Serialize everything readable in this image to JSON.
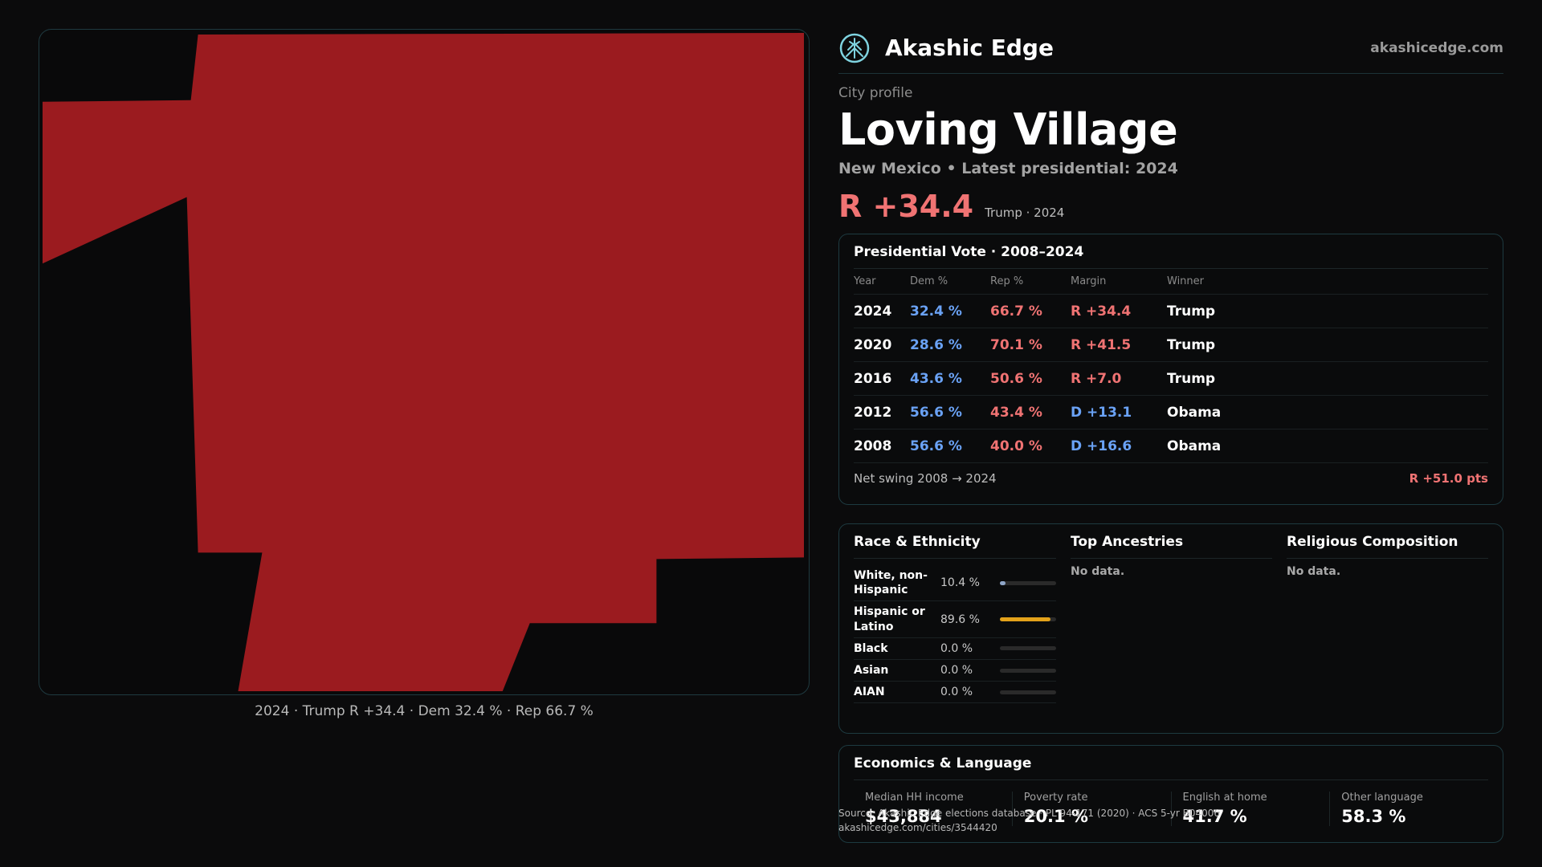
{
  "brand": {
    "name": "Akashic Edge",
    "url": "akashicedge.com",
    "logo_icon": "akashic-tree-logo"
  },
  "profile": {
    "eyebrow": "City profile",
    "city": "Loving Village",
    "subtitle": "New Mexico • Latest presidential: 2024",
    "headline_margin": "R +34.4",
    "headline_note": "Trump · 2024"
  },
  "map": {
    "caption": "2024 · Trump R +34.4 · Dem 32.4 % · Rep 66.7 %",
    "fill_color": "#9b1b1f"
  },
  "vote": {
    "title": "Presidential Vote · 2008–2024",
    "headers": {
      "year": "Year",
      "dem": "Dem %",
      "rep": "Rep %",
      "margin": "Margin",
      "winner": "Winner"
    },
    "rows": [
      {
        "year": "2024",
        "dem": "32.4 %",
        "rep": "66.7 %",
        "margin": "R +34.4",
        "winner": "Trump"
      },
      {
        "year": "2020",
        "dem": "28.6 %",
        "rep": "70.1 %",
        "margin": "R +41.5",
        "winner": "Trump"
      },
      {
        "year": "2016",
        "dem": "43.6 %",
        "rep": "50.6 %",
        "margin": "R +7.0",
        "winner": "Trump"
      },
      {
        "year": "2012",
        "dem": "56.6 %",
        "rep": "43.4 %",
        "margin": "D +13.1",
        "winner": "Obama"
      },
      {
        "year": "2008",
        "dem": "56.6 %",
        "rep": "40.0 %",
        "margin": "D +16.6",
        "winner": "Obama"
      }
    ],
    "swing_label": "Net swing 2008 → 2024",
    "swing_value": "R +51.0 pts"
  },
  "demographics": {
    "race_title": "Race & Ethnicity",
    "race": [
      {
        "label": "White, non-Hispanic",
        "pct": "10.4 %",
        "fraction": 0.104,
        "color": "#8fa6c8"
      },
      {
        "label": "Hispanic or Latino",
        "pct": "89.6 %",
        "fraction": 0.896,
        "color": "#e3a21a"
      },
      {
        "label": "Black",
        "pct": "0.0 %",
        "fraction": 0,
        "color": "#8fa6c8"
      },
      {
        "label": "Asian",
        "pct": "0.0 %",
        "fraction": 0,
        "color": "#8fa6c8"
      },
      {
        "label": "AIAN",
        "pct": "0.0 %",
        "fraction": 0,
        "color": "#8fa6c8"
      }
    ],
    "ancestry_title": "Top Ancestries",
    "ancestry_nodata": "No data.",
    "religion_title": "Religious Composition",
    "religion_nodata": "No data."
  },
  "economics": {
    "title": "Economics & Language",
    "items": [
      {
        "label": "Median HH income",
        "value": "$43,884"
      },
      {
        "label": "Poverty rate",
        "value": "20.1 %"
      },
      {
        "label": "English at home",
        "value": "41.7 %"
      },
      {
        "label": "Other language",
        "value": "58.3 %"
      }
    ]
  },
  "footer": {
    "source": "Source: Akashic Edge elections database · PL 94-171 (2020) · ACS 5-yr B04006",
    "link": "akashicedge.com/cities/3544420"
  }
}
